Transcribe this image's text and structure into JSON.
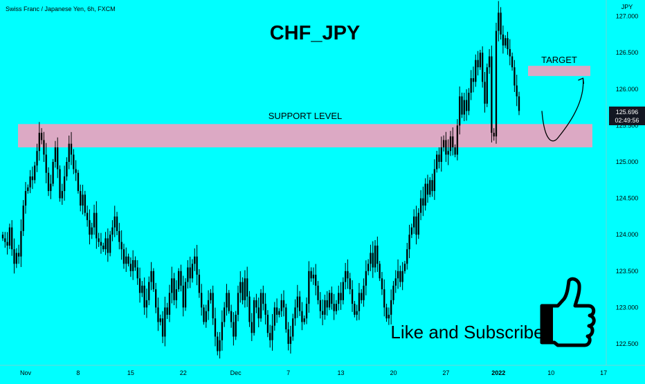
{
  "header": {
    "symbol_description": "Swiss Franc / Japanese Yen, 6h, FXCM",
    "currency": "JPY"
  },
  "price_badge": {
    "price": "125.696",
    "countdown": "02:49:56",
    "bg_color": "#131722",
    "text_color": "#ffffff"
  },
  "colors": {
    "background": "#00ffff",
    "candle": "#000000",
    "zone": "#dca9c4",
    "text": "#000000"
  },
  "chart_data": {
    "type": "candlestick",
    "title": "CHF_JPY",
    "ylim": [
      122.25,
      127.12
    ],
    "y_ticks": [
      122.5,
      123.0,
      123.5,
      124.0,
      124.5,
      125.0,
      125.5,
      126.0,
      126.5,
      127.0
    ],
    "y_tick_labels": [
      "122.500",
      "123.000",
      "123.500",
      "124.000",
      "124.500",
      "125.000",
      "125.500",
      "126.000",
      "126.500",
      "127.000"
    ],
    "x_ticks": [
      "Nov",
      "8",
      "15",
      "22",
      "Dec",
      "7",
      "13",
      "20",
      "27",
      "2022",
      "10",
      "17"
    ],
    "x_tick_bars": [
      10,
      33,
      56,
      79,
      102,
      125,
      148,
      171,
      194,
      217,
      240,
      263
    ],
    "grid": false,
    "annotations": {
      "support_label": "SUPPORT LEVEL",
      "support_zone": {
        "low": 125.2,
        "high": 125.52
      },
      "target_label": "TARGET",
      "target_zone": {
        "low": 126.18,
        "high": 126.32
      },
      "projection": [
        {
          "bar": 236,
          "price": 125.7
        },
        {
          "bar": 243,
          "price": 125.33
        },
        {
          "bar": 254,
          "price": 126.15
        }
      ],
      "cta": "Like and Subscribe"
    },
    "close": [
      123.95,
      123.9,
      123.85,
      124.1,
      123.8,
      123.6,
      123.75,
      123.7,
      124.05,
      124.4,
      124.6,
      124.65,
      124.8,
      124.75,
      124.95,
      125.15,
      125.4,
      125.3,
      125.1,
      124.85,
      124.6,
      124.7,
      125.0,
      125.2,
      124.9,
      124.5,
      124.6,
      124.8,
      125.0,
      125.25,
      125.1,
      124.9,
      124.85,
      124.6,
      124.4,
      124.55,
      124.3,
      124.2,
      124.0,
      124.1,
      124.3,
      123.95,
      123.9,
      123.85,
      123.8,
      123.95,
      123.75,
      124.0,
      124.1,
      124.25,
      124.05,
      123.9,
      123.8,
      123.6,
      123.7,
      123.6,
      123.5,
      123.65,
      123.55,
      123.4,
      123.2,
      123.3,
      123.0,
      123.1,
      123.35,
      123.5,
      123.25,
      123.0,
      122.8,
      122.85,
      122.6,
      123.0,
      122.9,
      123.2,
      123.4,
      123.1,
      123.25,
      123.5,
      123.3,
      123.0,
      123.35,
      123.55,
      123.4,
      123.6,
      123.7,
      123.45,
      123.2,
      123.0,
      122.8,
      122.95,
      123.1,
      123.2,
      122.85,
      122.6,
      122.4,
      122.55,
      122.8,
      123.0,
      123.2,
      122.95,
      122.8,
      122.6,
      122.9,
      123.2,
      123.35,
      123.1,
      123.4,
      123.15,
      122.8,
      122.65,
      123.1,
      123.0,
      122.85,
      123.2,
      123.05,
      122.9,
      122.65,
      122.55,
      122.75,
      123.0,
      122.9,
      122.95,
      123.1,
      123.0,
      122.7,
      122.5,
      122.6,
      122.85,
      123.0,
      123.15,
      122.95,
      122.8,
      122.85,
      123.05,
      123.5,
      123.4,
      123.45,
      123.3,
      123.1,
      122.95,
      122.9,
      123.1,
      123.0,
      123.2,
      123.05,
      122.95,
      123.05,
      123.2,
      123.1,
      123.35,
      123.5,
      123.4,
      123.25,
      123.05,
      122.9,
      122.95,
      123.2,
      123.1,
      123.3,
      123.5,
      123.6,
      123.75,
      123.55,
      123.85,
      123.6,
      123.4,
      123.25,
      123.0,
      122.85,
      122.9,
      123.1,
      123.3,
      123.4,
      123.5,
      123.35,
      123.5,
      123.6,
      123.8,
      124.0,
      124.1,
      124.25,
      124.0,
      124.3,
      124.5,
      124.4,
      124.7,
      124.55,
      124.75,
      124.6,
      124.9,
      125.1,
      125.0,
      125.2,
      125.3,
      125.1,
      125.15,
      125.35,
      125.2,
      125.1,
      125.5,
      125.9,
      125.65,
      125.85,
      125.7,
      125.95,
      126.15,
      126.1,
      126.4,
      126.3,
      126.5,
      126.1,
      125.8,
      126.3,
      126.45,
      125.4,
      125.35,
      126.8,
      127.05,
      126.75,
      126.6,
      126.7,
      126.55,
      126.45,
      126.3,
      126.05,
      125.9,
      125.7
    ]
  }
}
